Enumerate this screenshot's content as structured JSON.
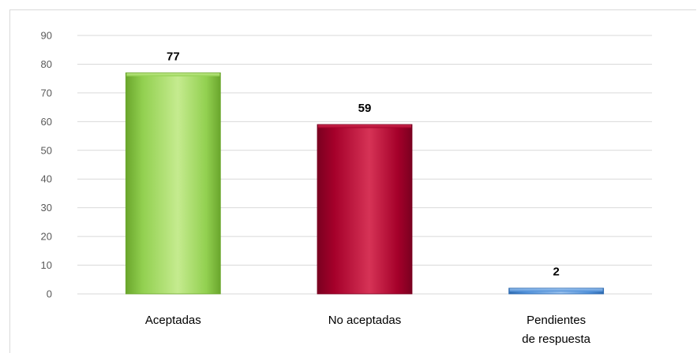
{
  "chart_data": {
    "type": "bar",
    "categories": [
      [
        "Aceptadas"
      ],
      [
        "No aceptadas"
      ],
      [
        "Pendientes",
        "de respuesta"
      ]
    ],
    "values": [
      77,
      59,
      2
    ],
    "data_labels": [
      "77",
      "59",
      "2"
    ],
    "yticks": [
      "0",
      "10",
      "20",
      "30",
      "40",
      "50",
      "60",
      "70",
      "80",
      "90"
    ],
    "ylim": [
      0,
      90
    ],
    "grid": true,
    "legend": "none",
    "title": "",
    "xlabel": "",
    "ylabel": "",
    "colors": {
      "bars": [
        {
          "fill": "#92d050",
          "light": "#c5eb8f",
          "dark": "#6aa62c"
        },
        {
          "fill": "#a5002a",
          "light": "#d63356",
          "dark": "#7a0020"
        },
        {
          "fill": "#4f8fd8",
          "light": "#9cc3ee",
          "dark": "#2f6bb0"
        }
      ],
      "grid": "#d9d9d9",
      "tick_text": "#595959"
    }
  }
}
